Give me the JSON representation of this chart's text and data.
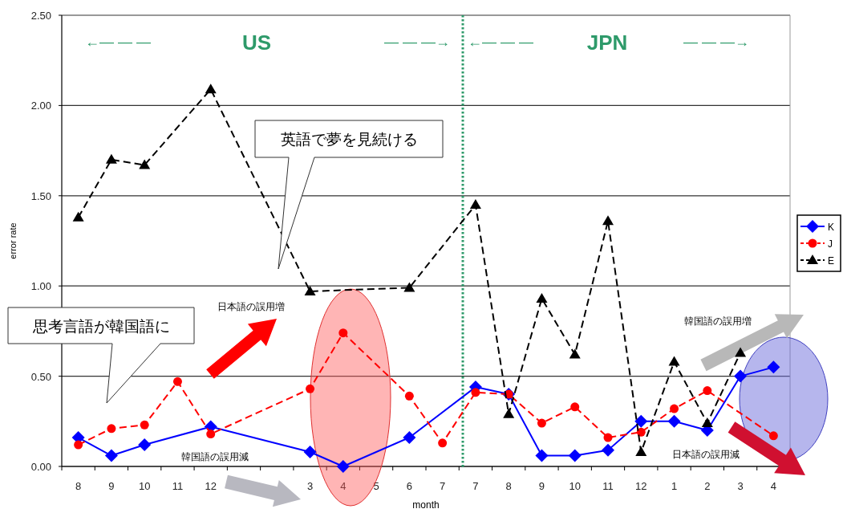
{
  "chart_data": {
    "type": "line",
    "xlabel": "month",
    "ylabel": "error rate",
    "categories": [
      "8",
      "9",
      "10",
      "11",
      "12",
      null,
      null,
      "3",
      "4",
      "5",
      "6",
      "7",
      "7",
      "8",
      "9",
      "10",
      "11",
      "12",
      "1",
      "2",
      "3",
      "4"
    ],
    "series": [
      {
        "name": "K",
        "color": "#0000ff",
        "marker": "diamond",
        "line_style": "solid",
        "values": [
          0.16,
          0.06,
          0.12,
          null,
          0.22,
          null,
          null,
          0.08,
          0.0,
          null,
          0.16,
          null,
          0.44,
          0.4,
          0.06,
          0.06,
          0.09,
          0.25,
          0.25,
          0.2,
          0.5,
          0.55
        ]
      },
      {
        "name": "J",
        "color": "#ff0000",
        "marker": "circle",
        "line_style": "dashed",
        "values": [
          0.12,
          0.21,
          0.23,
          0.47,
          0.18,
          null,
          null,
          0.43,
          0.74,
          null,
          0.39,
          0.13,
          0.41,
          0.4,
          0.24,
          0.33,
          0.16,
          0.19,
          0.32,
          0.42,
          null,
          0.17
        ]
      },
      {
        "name": "E",
        "color": "#000000",
        "marker": "triangle",
        "line_style": "dashed",
        "values": [
          1.38,
          1.7,
          1.67,
          null,
          2.09,
          null,
          null,
          0.97,
          null,
          null,
          0.99,
          null,
          1.45,
          0.29,
          0.93,
          0.62,
          1.36,
          0.08,
          0.58,
          0.24,
          0.63,
          null
        ]
      }
    ],
    "ylim": [
      0,
      2.5
    ],
    "yticks": [
      {
        "value": 0,
        "label": "0.00"
      },
      {
        "value": 0.5,
        "label": "0.50"
      },
      {
        "value": 1,
        "label": "1.00"
      },
      {
        "value": 1.5,
        "label": "1.50"
      },
      {
        "value": 2,
        "label": "2.00"
      },
      {
        "value": 2.5,
        "label": "2.50"
      }
    ],
    "grid": "y",
    "legend": "right",
    "annotations": [
      "US",
      "JPN",
      "←— — —",
      "— — —→",
      "←— — —",
      "— — —→",
      "英語で夢を見続ける",
      "思考言語が韓国語に",
      "日本語の誤用増",
      "韓国語の誤用減",
      "韓国語の誤用増",
      "日本語の誤用減"
    ]
  }
}
